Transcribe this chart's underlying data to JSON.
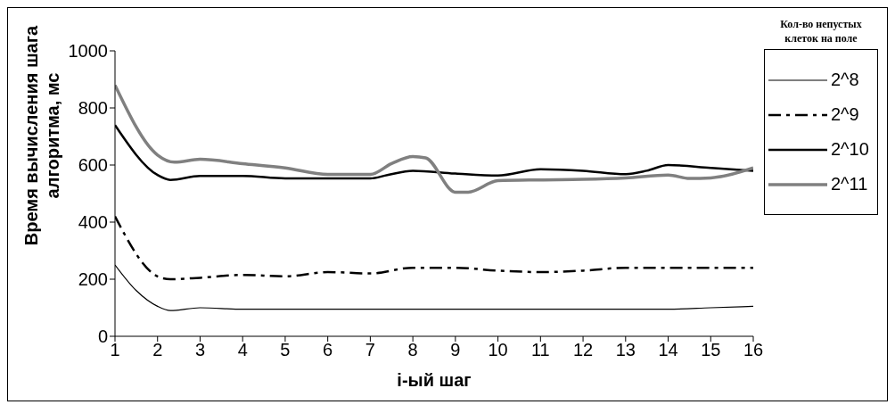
{
  "chart_data": {
    "type": "line",
    "xlabel": "i-ый шаг",
    "ylabel": "Время вычисления шага алгоритма, мс",
    "legend_title": "Кол-во непустых клеток на поле",
    "legend": "right",
    "grid": false,
    "marker": "none",
    "xlim": [
      1,
      16
    ],
    "xticks": [
      1,
      2,
      3,
      4,
      5,
      6,
      7,
      8,
      9,
      10,
      11,
      12,
      13,
      14,
      15,
      16
    ],
    "ylim": [
      0,
      1000
    ],
    "yticks": [
      0,
      200,
      400,
      600,
      800,
      1000
    ],
    "series": [
      {
        "name": "2^8",
        "color": "#000000",
        "line_style": "solid",
        "x": [
          1,
          1.5,
          2,
          2.3,
          3,
          4,
          5,
          6,
          7,
          8,
          9,
          10,
          11,
          12,
          13,
          14,
          15,
          16
        ],
        "values": [
          250,
          160,
          105,
          90,
          100,
          95,
          95,
          95,
          95,
          95,
          95,
          95,
          95,
          95,
          95,
          95,
          100,
          105
        ]
      },
      {
        "name": "2^9",
        "color": "#000000",
        "line_style": "dashed",
        "x": [
          1,
          2,
          2.3,
          3,
          4,
          5,
          6,
          7,
          8,
          9,
          10,
          11,
          12,
          13,
          14,
          15,
          16
        ],
        "values": [
          420,
          210,
          200,
          205,
          215,
          210,
          225,
          220,
          240,
          240,
          230,
          225,
          230,
          240,
          240,
          240,
          240
        ]
      },
      {
        "name": "2^10",
        "color": "#000000",
        "line_style": "solid",
        "x": [
          1,
          2,
          2.3,
          3,
          4,
          5,
          6,
          7,
          7.4,
          8,
          9,
          10,
          11,
          12,
          13,
          13.5,
          14,
          15,
          16
        ],
        "values": [
          740,
          565,
          548,
          562,
          562,
          553,
          553,
          553,
          565,
          580,
          570,
          563,
          585,
          580,
          568,
          580,
          600,
          590,
          580
        ]
      },
      {
        "name": "2^11",
        "color": "#808080",
        "line_style": "solid",
        "x": [
          1,
          2,
          2.4,
          3,
          4,
          5,
          6,
          7,
          7.5,
          8,
          8.3,
          9,
          9.3,
          10,
          11,
          12,
          13,
          14,
          14.5,
          15,
          16
        ],
        "values": [
          880,
          635,
          610,
          620,
          605,
          590,
          567,
          567,
          605,
          630,
          625,
          505,
          505,
          545,
          548,
          550,
          555,
          565,
          553,
          555,
          590
        ]
      }
    ]
  }
}
